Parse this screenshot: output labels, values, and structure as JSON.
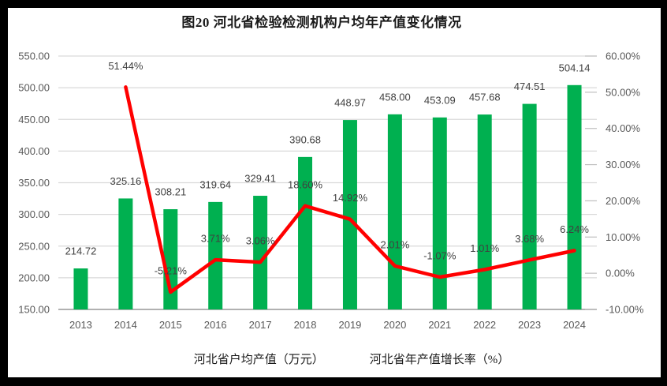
{
  "title": "图20 河北省检验检测机构户均年产值变化情况",
  "chart_data": {
    "type": "bar+line combo",
    "title": "图20 河北省检验检测机构户均年产值变化情况",
    "categories": [
      "2013",
      "2014",
      "2015",
      "2016",
      "2017",
      "2018",
      "2019",
      "2020",
      "2021",
      "2022",
      "2023",
      "2024"
    ],
    "series": [
      {
        "name": "河北省户均产值（万元）",
        "type": "bar",
        "axis": "left",
        "color": "#00B050",
        "values": [
          214.72,
          325.16,
          308.21,
          319.64,
          329.41,
          390.68,
          448.97,
          458.0,
          453.09,
          457.68,
          474.51,
          504.14
        ],
        "data_labels": [
          "214.72",
          "325.16",
          "308.21",
          "319.64",
          "329.41",
          "390.68",
          "448.97",
          "458.00",
          "453.09",
          "457.68",
          "474.51",
          "504.14"
        ]
      },
      {
        "name": "河北省年产值增长率（%）",
        "type": "line",
        "axis": "right",
        "color": "#FF0000",
        "values": [
          null,
          51.44,
          -5.21,
          3.71,
          3.06,
          18.6,
          14.92,
          2.01,
          -1.07,
          1.01,
          3.68,
          6.24
        ],
        "data_labels": [
          null,
          "51.44%",
          "-5.21%",
          "3.71%",
          "3.06%",
          "18.60%",
          "14.92%",
          "2.01%",
          "-1.07%",
          "1.01%",
          "3.68%",
          "6.24%"
        ]
      }
    ],
    "left_axis": {
      "min": 150,
      "max": 550,
      "step": 50,
      "tick_labels": [
        "550.00",
        "500.00",
        "450.00",
        "400.00",
        "350.00",
        "300.00",
        "250.00",
        "200.00",
        "150.00"
      ]
    },
    "right_axis": {
      "min": -10,
      "max": 60,
      "step": 10,
      "tick_labels": [
        "60.00%",
        "50.00%",
        "40.00%",
        "30.00%",
        "20.00%",
        "10.00%",
        "0.00%",
        "-10.00%"
      ]
    },
    "grid": true,
    "legend_position": "bottom"
  },
  "style_colors": {
    "bar_green": "#00B050",
    "line_red": "#FF0000",
    "gridline": "#D9D9D9",
    "axis_line": "#A6A6A6",
    "tick_mark": "#BFBFBF",
    "axis_label": "#595959",
    "data_label": "#404040",
    "title_text": "#1a1a1a",
    "frame_border": "#000000"
  }
}
